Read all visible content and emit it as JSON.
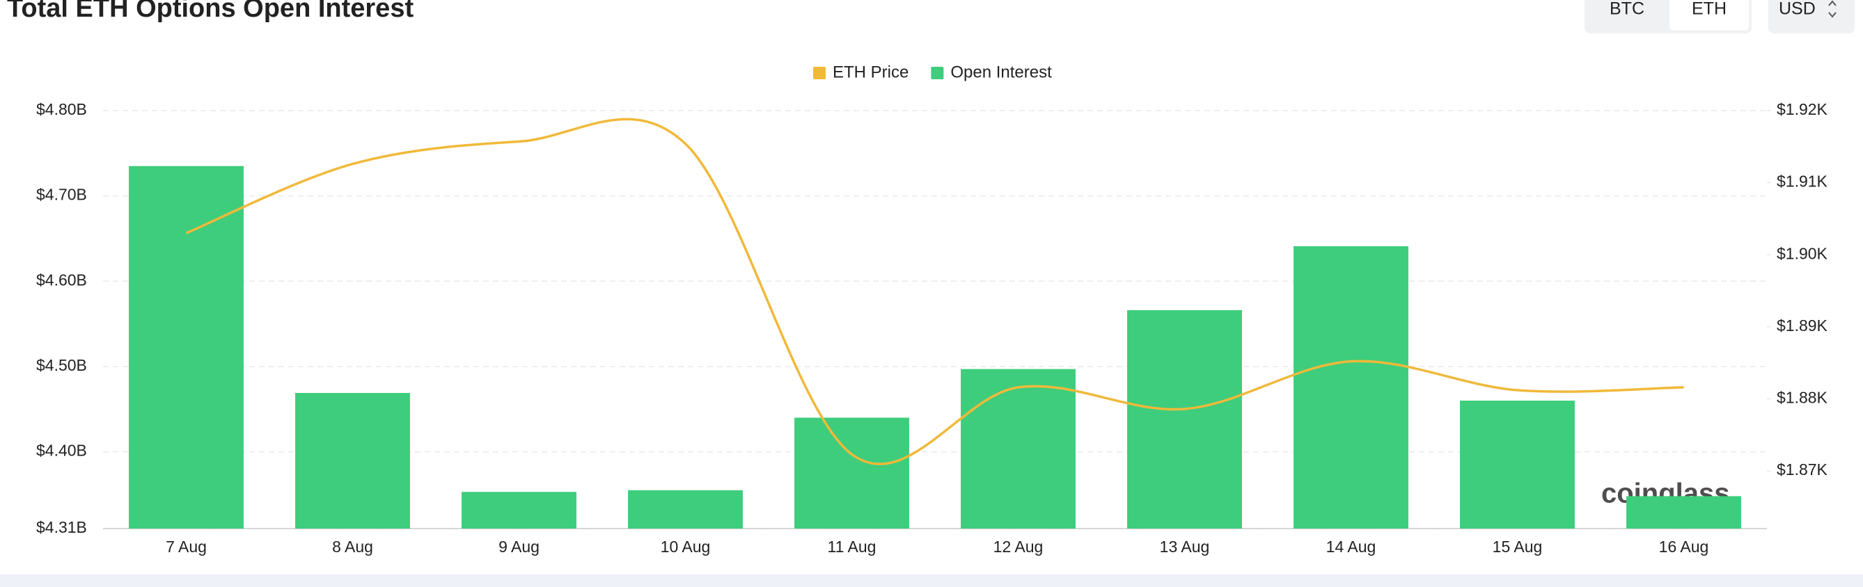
{
  "chart_data": {
    "type": "bar",
    "title": "Total ETH Options Open Interest",
    "buttons": [
      "BTC",
      "ETH"
    ],
    "currency": "USD",
    "watermark": "coinglass",
    "categories": [
      "7 Aug",
      "8 Aug",
      "9 Aug",
      "10 Aug",
      "11 Aug",
      "12 Aug",
      "13 Aug",
      "14 Aug",
      "15 Aug",
      "16 Aug"
    ],
    "series": [
      {
        "name": "ETH Price",
        "type": "line",
        "axis": "y2",
        "color": "#f0b93a",
        "values": [
          1903,
          1912.6,
          1915.7,
          1915.4,
          1872.3,
          1881.6,
          1878.6,
          1885.2,
          1881.2,
          1881.6
        ]
      },
      {
        "name": "Open Interest",
        "type": "bar",
        "color": "#3ecd7c",
        "values": [
          4.735,
          4.469,
          4.353,
          4.355,
          4.44,
          4.497,
          4.566,
          4.641,
          4.46,
          4.348
        ]
      }
    ],
    "ylim": [
      4.31,
      4.8
    ],
    "yticks": [
      {
        "value": 4.31,
        "label": "$4.31B"
      },
      {
        "value": 4.4,
        "label": "$4.40B"
      },
      {
        "value": 4.5,
        "label": "$4.50B"
      },
      {
        "value": 4.6,
        "label": "$4.60B"
      },
      {
        "value": 4.7,
        "label": "$4.70B"
      },
      {
        "value": 4.8,
        "label": "$4.80B"
      }
    ],
    "y2lim": [
      1862,
      1920
    ],
    "y2ticks": [
      {
        "value": 1870,
        "label": "$1.87K"
      },
      {
        "value": 1880,
        "label": "$1.88K"
      },
      {
        "value": 1890,
        "label": "$1.89K"
      },
      {
        "value": 1900,
        "label": "$1.90K"
      },
      {
        "value": 1910,
        "label": "$1.91K"
      },
      {
        "value": 1920,
        "label": "$1.92K"
      }
    ],
    "grid": true,
    "legend": "top"
  }
}
